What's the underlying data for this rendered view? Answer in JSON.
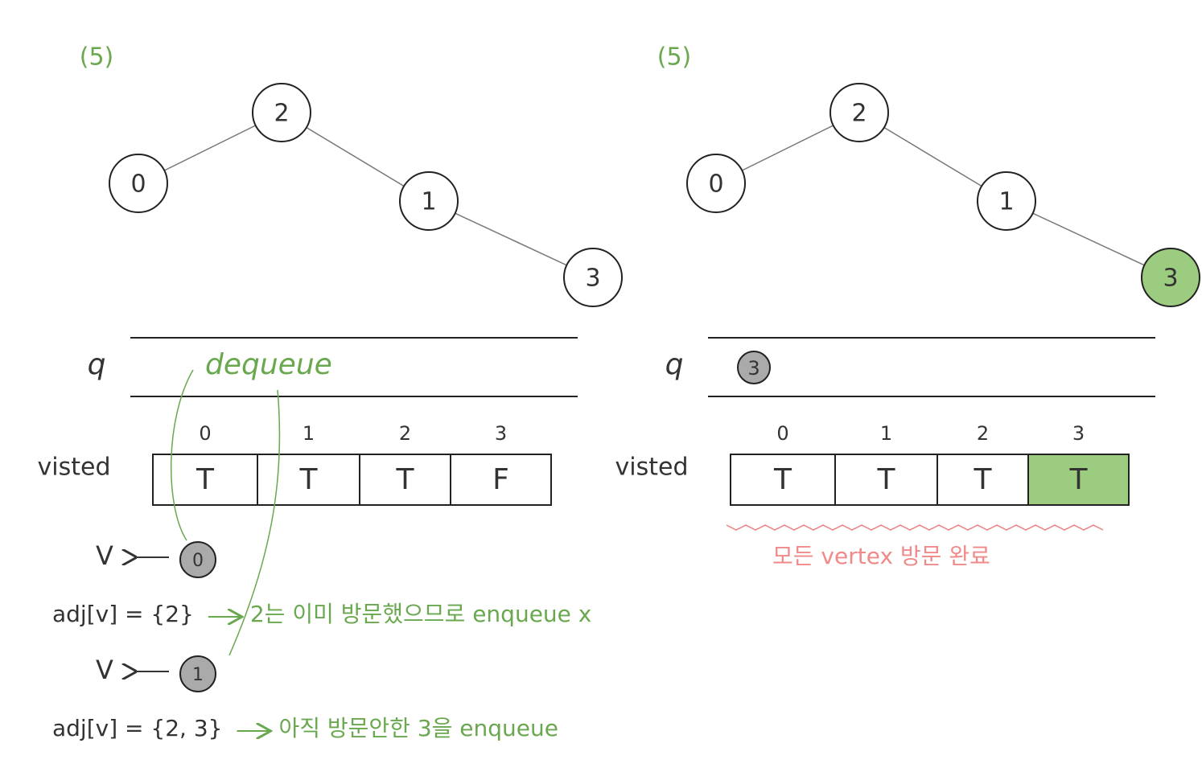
{
  "panels": [
    {
      "step": "(5)",
      "tree": {
        "nodes": [
          {
            "label": "2"
          },
          {
            "label": "0"
          },
          {
            "label": "1"
          },
          {
            "label": "3"
          }
        ]
      },
      "queue": {
        "label": "q",
        "annotation": "dequeue"
      },
      "visited": {
        "label": "visted",
        "indices": [
          "0",
          "1",
          "2",
          "3"
        ],
        "cells": [
          "T",
          "T",
          "T",
          "F"
        ]
      },
      "steps": [
        {
          "var": "V",
          "node": "0",
          "adj": "adj[v] = {2}",
          "note": "2는 이미 방문했으므로 enqueue x"
        },
        {
          "var": "V",
          "node": "1",
          "adj": "adj[v] = {2, 3}",
          "note": "아직 방문안한 3을 enqueue"
        }
      ]
    },
    {
      "step": "(5)",
      "tree": {
        "nodes": [
          {
            "label": "2"
          },
          {
            "label": "0"
          },
          {
            "label": "1"
          },
          {
            "label": "3"
          }
        ]
      },
      "queue": {
        "label": "q",
        "items": [
          "3"
        ]
      },
      "visited": {
        "label": "visted",
        "indices": [
          "0",
          "1",
          "2",
          "3"
        ],
        "cells": [
          "T",
          "T",
          "T",
          "T"
        ]
      },
      "note": "모든 vertex 방문 완료"
    }
  ]
}
